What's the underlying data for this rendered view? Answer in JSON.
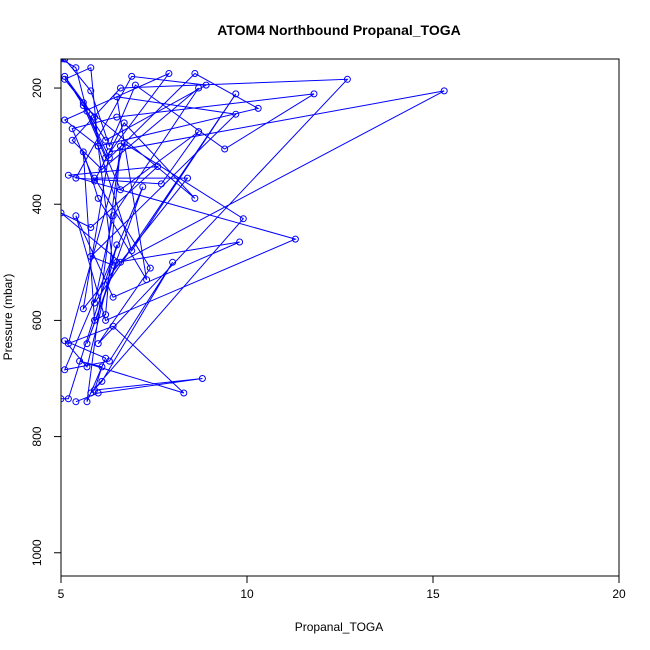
{
  "chart_data": {
    "type": "line",
    "title": "ATOM4 Northbound Propanal_TOGA",
    "xlabel": "Propanal_TOGA",
    "ylabel": "Pressure (mbar)",
    "xlim": [
      5,
      20
    ],
    "ylim": [
      1040,
      150
    ],
    "y_reversed": true,
    "x_ticks": [
      5,
      10,
      15,
      20
    ],
    "y_ticks": [
      200,
      400,
      600,
      800,
      1000
    ],
    "grid": false,
    "legend": "none",
    "series_color": "#0000ff",
    "marker": "open-circle",
    "series": [
      {
        "x": [
          5.1,
          5.8,
          6.3,
          7.0,
          9.4,
          11.8,
          6.5,
          5.3,
          5.9,
          6.7,
          8.6,
          5.6,
          6.2,
          7.9,
          5.1,
          6.0,
          6.9,
          9.7,
          5.9,
          6.4,
          8.7,
          6.1,
          5.3,
          6.6,
          12.7,
          6.0,
          7.4,
          5.9,
          8.4,
          5.6,
          6.3,
          15.3,
          6.6,
          5.0,
          5.8,
          7.6,
          5.2,
          11.3,
          6.2,
          5.4,
          6.4,
          9.8,
          6.5,
          5.7,
          7.2,
          5.1,
          6.3,
          8.0,
          6.1,
          5.8,
          9.9,
          6.7,
          5.2,
          6.4,
          8.3,
          5.5,
          6.1,
          5.9,
          8.8,
          6.0,
          5.4
        ],
        "y": [
          150,
          205,
          300,
          195,
          305,
          210,
          250,
          270,
          360,
          260,
          390,
          230,
          320,
          175,
          255,
          300,
          480,
          210,
          570,
          420,
          200,
          340,
          290,
          200,
          185,
          640,
          510,
          355,
          355,
          580,
          310,
          205,
          500,
          415,
          440,
          335,
          350,
          460,
          600,
          420,
          560,
          465,
          500,
          640,
          370,
          685,
          670,
          500,
          705,
          725,
          425,
          295,
          640,
          610,
          725,
          670,
          680,
          720,
          700,
          725,
          740
        ]
      },
      {
        "x": [
          5.0,
          5.4,
          5.7,
          6.3,
          8.6,
          10.3,
          6.0,
          5.8,
          5.1,
          5.6,
          6.6,
          8.7,
          7.7,
          5.4,
          6.9,
          8.9,
          6.2,
          5.1,
          5.9,
          6.4,
          5.8,
          9.7,
          6.5,
          7.3,
          6.0,
          5.6,
          5.9,
          6.2,
          6.6,
          5.7,
          6.2,
          5.1,
          5.7,
          6.5,
          5.2,
          5.0
        ],
        "y": [
          150,
          165,
          240,
          320,
          175,
          235,
          300,
          165,
          185,
          225,
          375,
          275,
          365,
          355,
          180,
          195,
          290,
          180,
          250,
          505,
          490,
          245,
          215,
          530,
          390,
          310,
          600,
          590,
          300,
          740,
          665,
          635,
          680,
          470,
          735,
          735
        ]
      }
    ]
  }
}
